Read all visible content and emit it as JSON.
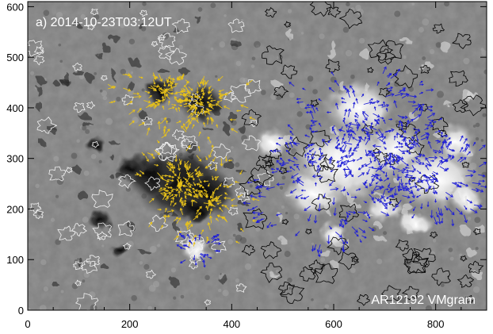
{
  "panel_label": "a) 2014-10-23T03:12UT",
  "corner_label": "AR12192 VMgram",
  "x_axis": {
    "ticks": [
      "0",
      "200",
      "400",
      "600",
      "800"
    ],
    "range": [
      0,
      900
    ]
  },
  "y_axis": {
    "ticks": [
      "0",
      "100",
      "200",
      "300",
      "400",
      "500",
      "600"
    ],
    "range": [
      0,
      610
    ]
  },
  "colors": {
    "background_gray": "#7d7d7d",
    "negative_vectors": "#e8c21a",
    "positive_vectors": "#1f1fd6",
    "positive_field": "#ffffff",
    "negative_field": "#1a1a1a",
    "contour_white": "#f2f2f2",
    "contour_black": "#000000"
  },
  "image_content": {
    "description_type": "solar active region vector magnetogram",
    "negative_polarity_centers": [
      [
        300,
        250
      ],
      [
        340,
        410
      ],
      [
        260,
        430
      ]
    ],
    "positive_polarity_centers": [
      [
        620,
        290
      ],
      [
        650,
        400
      ],
      [
        560,
        230
      ],
      [
        800,
        260
      ],
      [
        330,
        120
      ]
    ]
  }
}
